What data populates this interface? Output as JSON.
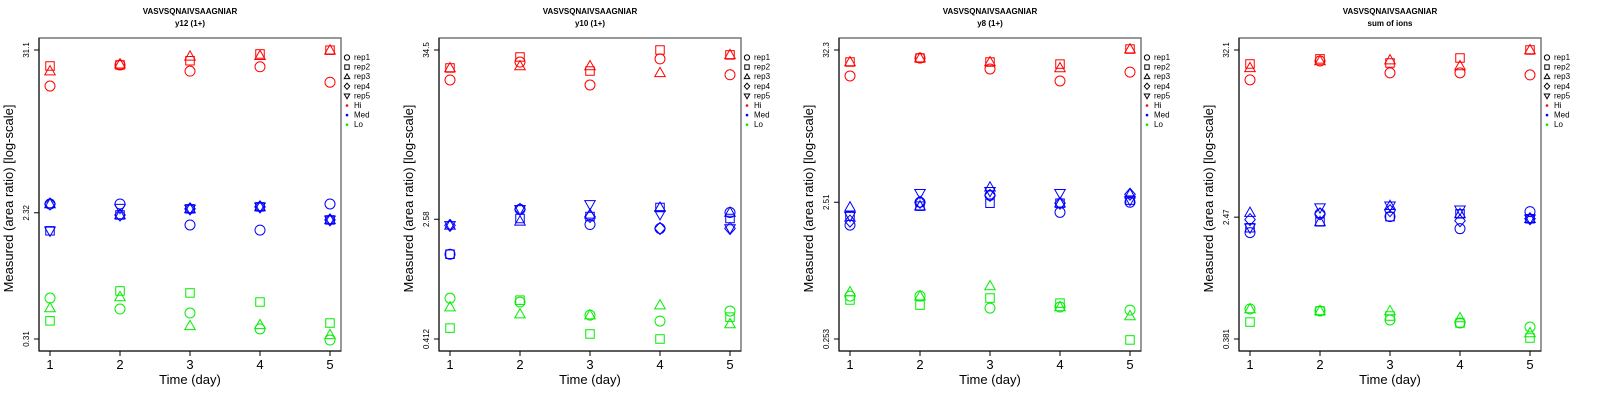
{
  "figure": {
    "colors": {
      "Hi": "#ff0000",
      "Med": "#0000ff",
      "Lo": "#00ee00"
    },
    "legend": {
      "replicates": [
        {
          "label": "rep1",
          "marker": "circle"
        },
        {
          "label": "rep2",
          "marker": "square"
        },
        {
          "label": "rep3",
          "marker": "triangle-up"
        },
        {
          "label": "rep4",
          "marker": "diamond"
        },
        {
          "label": "rep5",
          "marker": "triangle-down"
        }
      ],
      "levels": [
        {
          "label": "Hi",
          "color": "#ff0000"
        },
        {
          "label": "Med",
          "color": "#0000ff"
        },
        {
          "label": "Lo",
          "color": "#00ee00"
        }
      ]
    }
  },
  "chart_data": [
    {
      "type": "scatter",
      "title": "VASVSQNAIVSAAGNIAR",
      "subtitle": "y12 (1+)",
      "xlabel": "Time (day)",
      "ylabel": "Measured (area ratio) [log-scale]",
      "yscale": "log",
      "x_ticks": [
        1,
        2,
        3,
        4,
        5
      ],
      "y_ticks": [
        "0.31",
        "2.32",
        "31.1"
      ],
      "ylim": [
        0.31,
        31.1
      ],
      "legend_position": "right",
      "series": [
        {
          "level": "Hi",
          "rep": "rep1",
          "x": [
            1,
            2,
            3,
            4,
            5
          ],
          "y": [
            17.5,
            24.5,
            22.2,
            23.8,
            18.6
          ]
        },
        {
          "level": "Hi",
          "rep": "rep2",
          "x": [
            1,
            2,
            3,
            4,
            5
          ],
          "y": [
            24.1,
            24.5,
            26.2,
            29.2,
            31.0
          ]
        },
        {
          "level": "Hi",
          "rep": "rep3",
          "x": [
            1,
            2,
            3,
            4,
            5
          ],
          "y": [
            22.2,
            24.8,
            28.1,
            28.4,
            31.0
          ]
        },
        {
          "level": "Med",
          "rep": "rep1",
          "x": [
            1,
            2,
            3,
            4,
            5
          ],
          "y": [
            2.67,
            2.67,
            1.91,
            1.76,
            2.67
          ]
        },
        {
          "level": "Med",
          "rep": "rep2",
          "x": [
            1,
            2,
            3,
            4,
            5
          ],
          "y": [
            1.74,
            2.24,
            2.47,
            2.55,
            2.07
          ]
        },
        {
          "level": "Med",
          "rep": "rep3",
          "x": [
            1,
            2,
            3,
            4,
            5
          ],
          "y": [
            2.67,
            2.24,
            2.47,
            2.55,
            2.07
          ]
        },
        {
          "level": "Med",
          "rep": "rep4",
          "x": [
            1,
            2,
            3,
            4,
            5
          ],
          "y": [
            2.67,
            2.24,
            2.47,
            2.55,
            2.07
          ]
        },
        {
          "level": "Med",
          "rep": "rep5",
          "x": [
            1,
            2,
            3,
            4,
            5
          ],
          "y": [
            1.74,
            2.5,
            2.47,
            2.55,
            2.07
          ]
        },
        {
          "level": "Lo",
          "rep": "rep1",
          "x": [
            1,
            2,
            3,
            4,
            5
          ],
          "y": [
            0.596,
            0.5,
            0.469,
            0.364,
            0.305
          ]
        },
        {
          "level": "Lo",
          "rep": "rep2",
          "x": [
            1,
            2,
            3,
            4,
            5
          ],
          "y": [
            0.414,
            0.667,
            0.646,
            0.559,
            0.4
          ]
        },
        {
          "level": "Lo",
          "rep": "rep3",
          "x": [
            1,
            2,
            3,
            4,
            5
          ],
          "y": [
            0.508,
            0.606,
            0.382,
            0.388,
            0.331
          ]
        }
      ]
    },
    {
      "type": "scatter",
      "title": "VASVSQNAIVSAAGNIAR",
      "subtitle": "y10 (1+)",
      "xlabel": "Time (day)",
      "ylabel": "Measured (area ratio) [log-scale]",
      "yscale": "log",
      "x_ticks": [
        1,
        2,
        3,
        4,
        5
      ],
      "y_ticks": [
        "0.412",
        "2.58",
        "34.5"
      ],
      "ylim": [
        0.412,
        34.5
      ],
      "legend_position": "right",
      "series": [
        {
          "level": "Hi",
          "rep": "rep1",
          "x": [
            1,
            2,
            3,
            4,
            5
          ],
          "y": [
            21.8,
            28.7,
            20.2,
            30.1,
            23.6
          ]
        },
        {
          "level": "Hi",
          "rep": "rep2",
          "x": [
            1,
            2,
            3,
            4,
            5
          ],
          "y": [
            26.2,
            31.0,
            25.0,
            34.5,
            32.0
          ]
        },
        {
          "level": "Hi",
          "rep": "rep3",
          "x": [
            1,
            2,
            3,
            4,
            5
          ],
          "y": [
            26.2,
            27.0,
            27.0,
            24.3,
            32.0
          ]
        },
        {
          "level": "Med",
          "rep": "rep1",
          "x": [
            1,
            2,
            3,
            4,
            5
          ],
          "y": [
            1.51,
            3.0,
            2.38,
            2.24,
            2.86
          ]
        },
        {
          "level": "Med",
          "rep": "rep2",
          "x": [
            1,
            2,
            3,
            4,
            5
          ],
          "y": [
            1.51,
            2.61,
            2.69,
            3.09,
            2.61
          ]
        },
        {
          "level": "Med",
          "rep": "rep3",
          "x": [
            1,
            2,
            3,
            4,
            5
          ],
          "y": [
            2.35,
            2.5,
            2.78,
            3.09,
            2.86
          ]
        },
        {
          "level": "Med",
          "rep": "rep4",
          "x": [
            1,
            2,
            3,
            4,
            5
          ],
          "y": [
            2.35,
            3.0,
            2.69,
            2.24,
            2.24
          ]
        },
        {
          "level": "Med",
          "rep": "rep5",
          "x": [
            1,
            2,
            3,
            4,
            5
          ],
          "y": [
            2.35,
            3.0,
            3.24,
            2.78,
            2.24
          ]
        },
        {
          "level": "Lo",
          "rep": "rep1",
          "x": [
            1,
            2,
            3,
            4,
            5
          ],
          "y": [
            0.77,
            0.725,
            0.594,
            0.542,
            0.632
          ]
        },
        {
          "level": "Lo",
          "rep": "rep2",
          "x": [
            1,
            2,
            3,
            4,
            5
          ],
          "y": [
            0.487,
            0.747,
            0.445,
            0.412,
            0.576
          ]
        },
        {
          "level": "Lo",
          "rep": "rep3",
          "x": [
            1,
            2,
            3,
            4,
            5
          ],
          "y": [
            0.672,
            0.603,
            0.594,
            0.692,
            0.518
          ]
        }
      ]
    },
    {
      "type": "scatter",
      "title": "VASVSQNAIVSAAGNIAR",
      "subtitle": "y8 (1+)",
      "xlabel": "Time (day)",
      "ylabel": "Measured (area ratio) [log-scale]",
      "yscale": "log",
      "x_ticks": [
        1,
        2,
        3,
        4,
        5
      ],
      "y_ticks": [
        "0.253",
        "2.51",
        "32.3"
      ],
      "ylim": [
        0.253,
        32.3
      ],
      "legend_position": "right",
      "series": [
        {
          "level": "Hi",
          "rep": "rep1",
          "x": [
            1,
            2,
            3,
            4,
            5
          ],
          "y": [
            20.9,
            28.2,
            23.5,
            19.2,
            22.3
          ]
        },
        {
          "level": "Hi",
          "rep": "rep2",
          "x": [
            1,
            2,
            3,
            4,
            5
          ],
          "y": [
            26.4,
            28.2,
            26.4,
            25.5,
            32.8
          ]
        },
        {
          "level": "Hi",
          "rep": "rep3",
          "x": [
            1,
            2,
            3,
            4,
            5
          ],
          "y": [
            26.4,
            28.2,
            26.4,
            23.9,
            32.8
          ]
        },
        {
          "level": "Med",
          "rep": "rep1",
          "x": [
            1,
            2,
            3,
            4,
            5
          ],
          "y": [
            1.71,
            2.51,
            2.82,
            2.12,
            2.51
          ]
        },
        {
          "level": "Med",
          "rep": "rep2",
          "x": [
            1,
            2,
            3,
            4,
            5
          ],
          "y": [
            1.99,
            2.35,
            2.47,
            2.47,
            2.6
          ]
        },
        {
          "level": "Med",
          "rep": "rep3",
          "x": [
            1,
            2,
            3,
            4,
            5
          ],
          "y": [
            2.31,
            2.35,
            3.23,
            2.47,
            2.87
          ]
        },
        {
          "level": "Med",
          "rep": "rep4",
          "x": [
            1,
            2,
            3,
            4,
            5
          ],
          "y": [
            1.83,
            2.51,
            2.82,
            2.47,
            2.87
          ]
        },
        {
          "level": "Med",
          "rep": "rep5",
          "x": [
            1,
            2,
            3,
            4,
            5
          ],
          "y": [
            1.99,
            2.92,
            3.02,
            2.92,
            2.6
          ]
        },
        {
          "level": "Lo",
          "rep": "rep1",
          "x": [
            1,
            2,
            3,
            4,
            5
          ],
          "y": [
            0.52,
            0.52,
            0.425,
            0.433,
            0.411
          ]
        },
        {
          "level": "Lo",
          "rep": "rep2",
          "x": [
            1,
            2,
            3,
            4,
            5
          ],
          "y": [
            0.487,
            0.447,
            0.503,
            0.462,
            0.249
          ]
        },
        {
          "level": "Lo",
          "rep": "rep3",
          "x": [
            1,
            2,
            3,
            4,
            5
          ],
          "y": [
            0.557,
            0.52,
            0.616,
            0.433,
            0.372
          ]
        }
      ]
    },
    {
      "type": "scatter",
      "title": "VASVSQNAIVSAAGNIAR",
      "subtitle": "sum of ions",
      "xlabel": "Time (day)",
      "ylabel": "Measured (area ratio) [log-scale]",
      "yscale": "log",
      "x_ticks": [
        1,
        2,
        3,
        4,
        5
      ],
      "y_ticks": [
        "0.381",
        "2.47",
        "32.1"
      ],
      "ylim": [
        0.381,
        32.1
      ],
      "legend_position": "right",
      "series": [
        {
          "level": "Hi",
          "rep": "rep1",
          "x": [
            1,
            2,
            3,
            4,
            5
          ],
          "y": [
            20.3,
            27.1,
            22.6,
            22.6,
            21.9
          ]
        },
        {
          "level": "Hi",
          "rep": "rep2",
          "x": [
            1,
            2,
            3,
            4,
            5
          ],
          "y": [
            25.9,
            28.0,
            26.3,
            28.4,
            32.1
          ]
        },
        {
          "level": "Hi",
          "rep": "rep3",
          "x": [
            1,
            2,
            3,
            4,
            5
          ],
          "y": [
            24.4,
            27.1,
            27.5,
            25.1,
            32.1
          ]
        },
        {
          "level": "Med",
          "rep": "rep1",
          "x": [
            1,
            2,
            3,
            4,
            5
          ],
          "y": [
            1.95,
            2.6,
            2.49,
            2.07,
            2.69
          ]
        },
        {
          "level": "Med",
          "rep": "rep2",
          "x": [
            1,
            2,
            3,
            4,
            5
          ],
          "y": [
            2.1,
            2.3,
            2.49,
            2.6,
            2.41
          ]
        },
        {
          "level": "Med",
          "rep": "rep3",
          "x": [
            1,
            2,
            3,
            4,
            5
          ],
          "y": [
            2.65,
            2.3,
            2.94,
            2.6,
            2.41
          ]
        },
        {
          "level": "Med",
          "rep": "rep4",
          "x": [
            1,
            2,
            3,
            4,
            5
          ],
          "y": [
            2.38,
            2.6,
            2.73,
            2.34,
            2.41
          ]
        },
        {
          "level": "Med",
          "rep": "rep5",
          "x": [
            1,
            2,
            3,
            4,
            5
          ],
          "y": [
            2.1,
            2.86,
            2.94,
            2.77,
            2.41
          ]
        },
        {
          "level": "Lo",
          "rep": "rep1",
          "x": [
            1,
            2,
            3,
            4,
            5
          ],
          "y": [
            0.604,
            0.586,
            0.51,
            0.487,
            0.458
          ]
        },
        {
          "level": "Lo",
          "rep": "rep2",
          "x": [
            1,
            2,
            3,
            4,
            5
          ],
          "y": [
            0.494,
            0.586,
            0.542,
            0.487,
            0.387
          ]
        },
        {
          "level": "Lo",
          "rep": "rep3",
          "x": [
            1,
            2,
            3,
            4,
            5
          ],
          "y": [
            0.604,
            0.586,
            0.586,
            0.526,
            0.418
          ]
        }
      ]
    }
  ]
}
